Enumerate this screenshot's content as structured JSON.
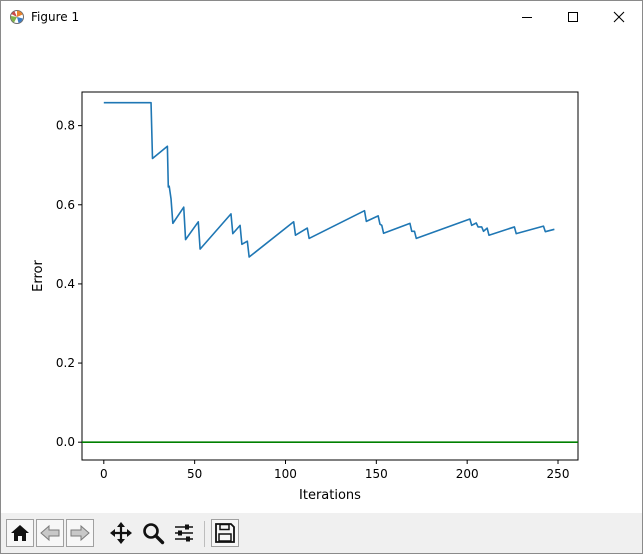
{
  "window": {
    "title": "Figure 1",
    "icons": {
      "app": "matplotlib-figure-icon",
      "minimize": "minimize-icon",
      "maximize": "maximize-icon",
      "close": "close-icon"
    }
  },
  "toolbar": {
    "buttons": [
      {
        "name": "home-button",
        "icon": "home-icon"
      },
      {
        "name": "back-button",
        "icon": "arrow-left-icon"
      },
      {
        "name": "forward-button",
        "icon": "arrow-right-icon"
      },
      {
        "name": "pan-button",
        "icon": "move-arrows-icon"
      },
      {
        "name": "zoom-button",
        "icon": "magnifier-icon"
      },
      {
        "name": "subplots-button",
        "icon": "sliders-icon"
      },
      {
        "name": "save-button",
        "icon": "floppy-disk-icon"
      }
    ]
  },
  "chart_data": {
    "type": "line",
    "title": "",
    "xlabel": "Iterations",
    "ylabel": "Error",
    "xlim": [
      -12,
      261
    ],
    "ylim": [
      -0.045,
      0.885
    ],
    "xticks": [
      0,
      50,
      100,
      150,
      200,
      250
    ],
    "xtick_labels": [
      "0",
      "50",
      "100",
      "150",
      "200",
      "250"
    ],
    "yticks": [
      0.0,
      0.2,
      0.4,
      0.6,
      0.8
    ],
    "ytick_labels": [
      "0.0",
      "0.2",
      "0.4",
      "0.6",
      "0.8"
    ],
    "grid": false,
    "series": [
      {
        "color": "#1f77b4",
        "x": [
          0,
          26,
          26.8,
          35,
          35.5,
          36,
          37,
          38,
          44,
          45,
          52,
          53,
          70,
          71,
          75,
          76,
          79,
          80,
          104.5,
          105.5,
          112,
          113,
          143.5,
          144.5,
          151,
          152,
          153,
          154,
          168.5,
          169.5,
          171,
          172,
          201.5,
          202.5,
          205,
          206,
          208,
          209,
          211,
          212,
          226,
          227,
          242,
          243,
          248
        ],
        "y": [
          0.858,
          0.858,
          0.717,
          0.748,
          0.645,
          0.647,
          0.615,
          0.553,
          0.594,
          0.512,
          0.557,
          0.488,
          0.577,
          0.527,
          0.548,
          0.5,
          0.508,
          0.468,
          0.557,
          0.523,
          0.541,
          0.515,
          0.585,
          0.558,
          0.572,
          0.551,
          0.548,
          0.528,
          0.553,
          0.533,
          0.533,
          0.515,
          0.564,
          0.548,
          0.554,
          0.544,
          0.544,
          0.533,
          0.541,
          0.523,
          0.544,
          0.527,
          0.546,
          0.532,
          0.538
        ]
      },
      {
        "color": "#008000",
        "x": [
          -12,
          261
        ],
        "y": [
          0.0,
          0.0
        ]
      }
    ]
  }
}
